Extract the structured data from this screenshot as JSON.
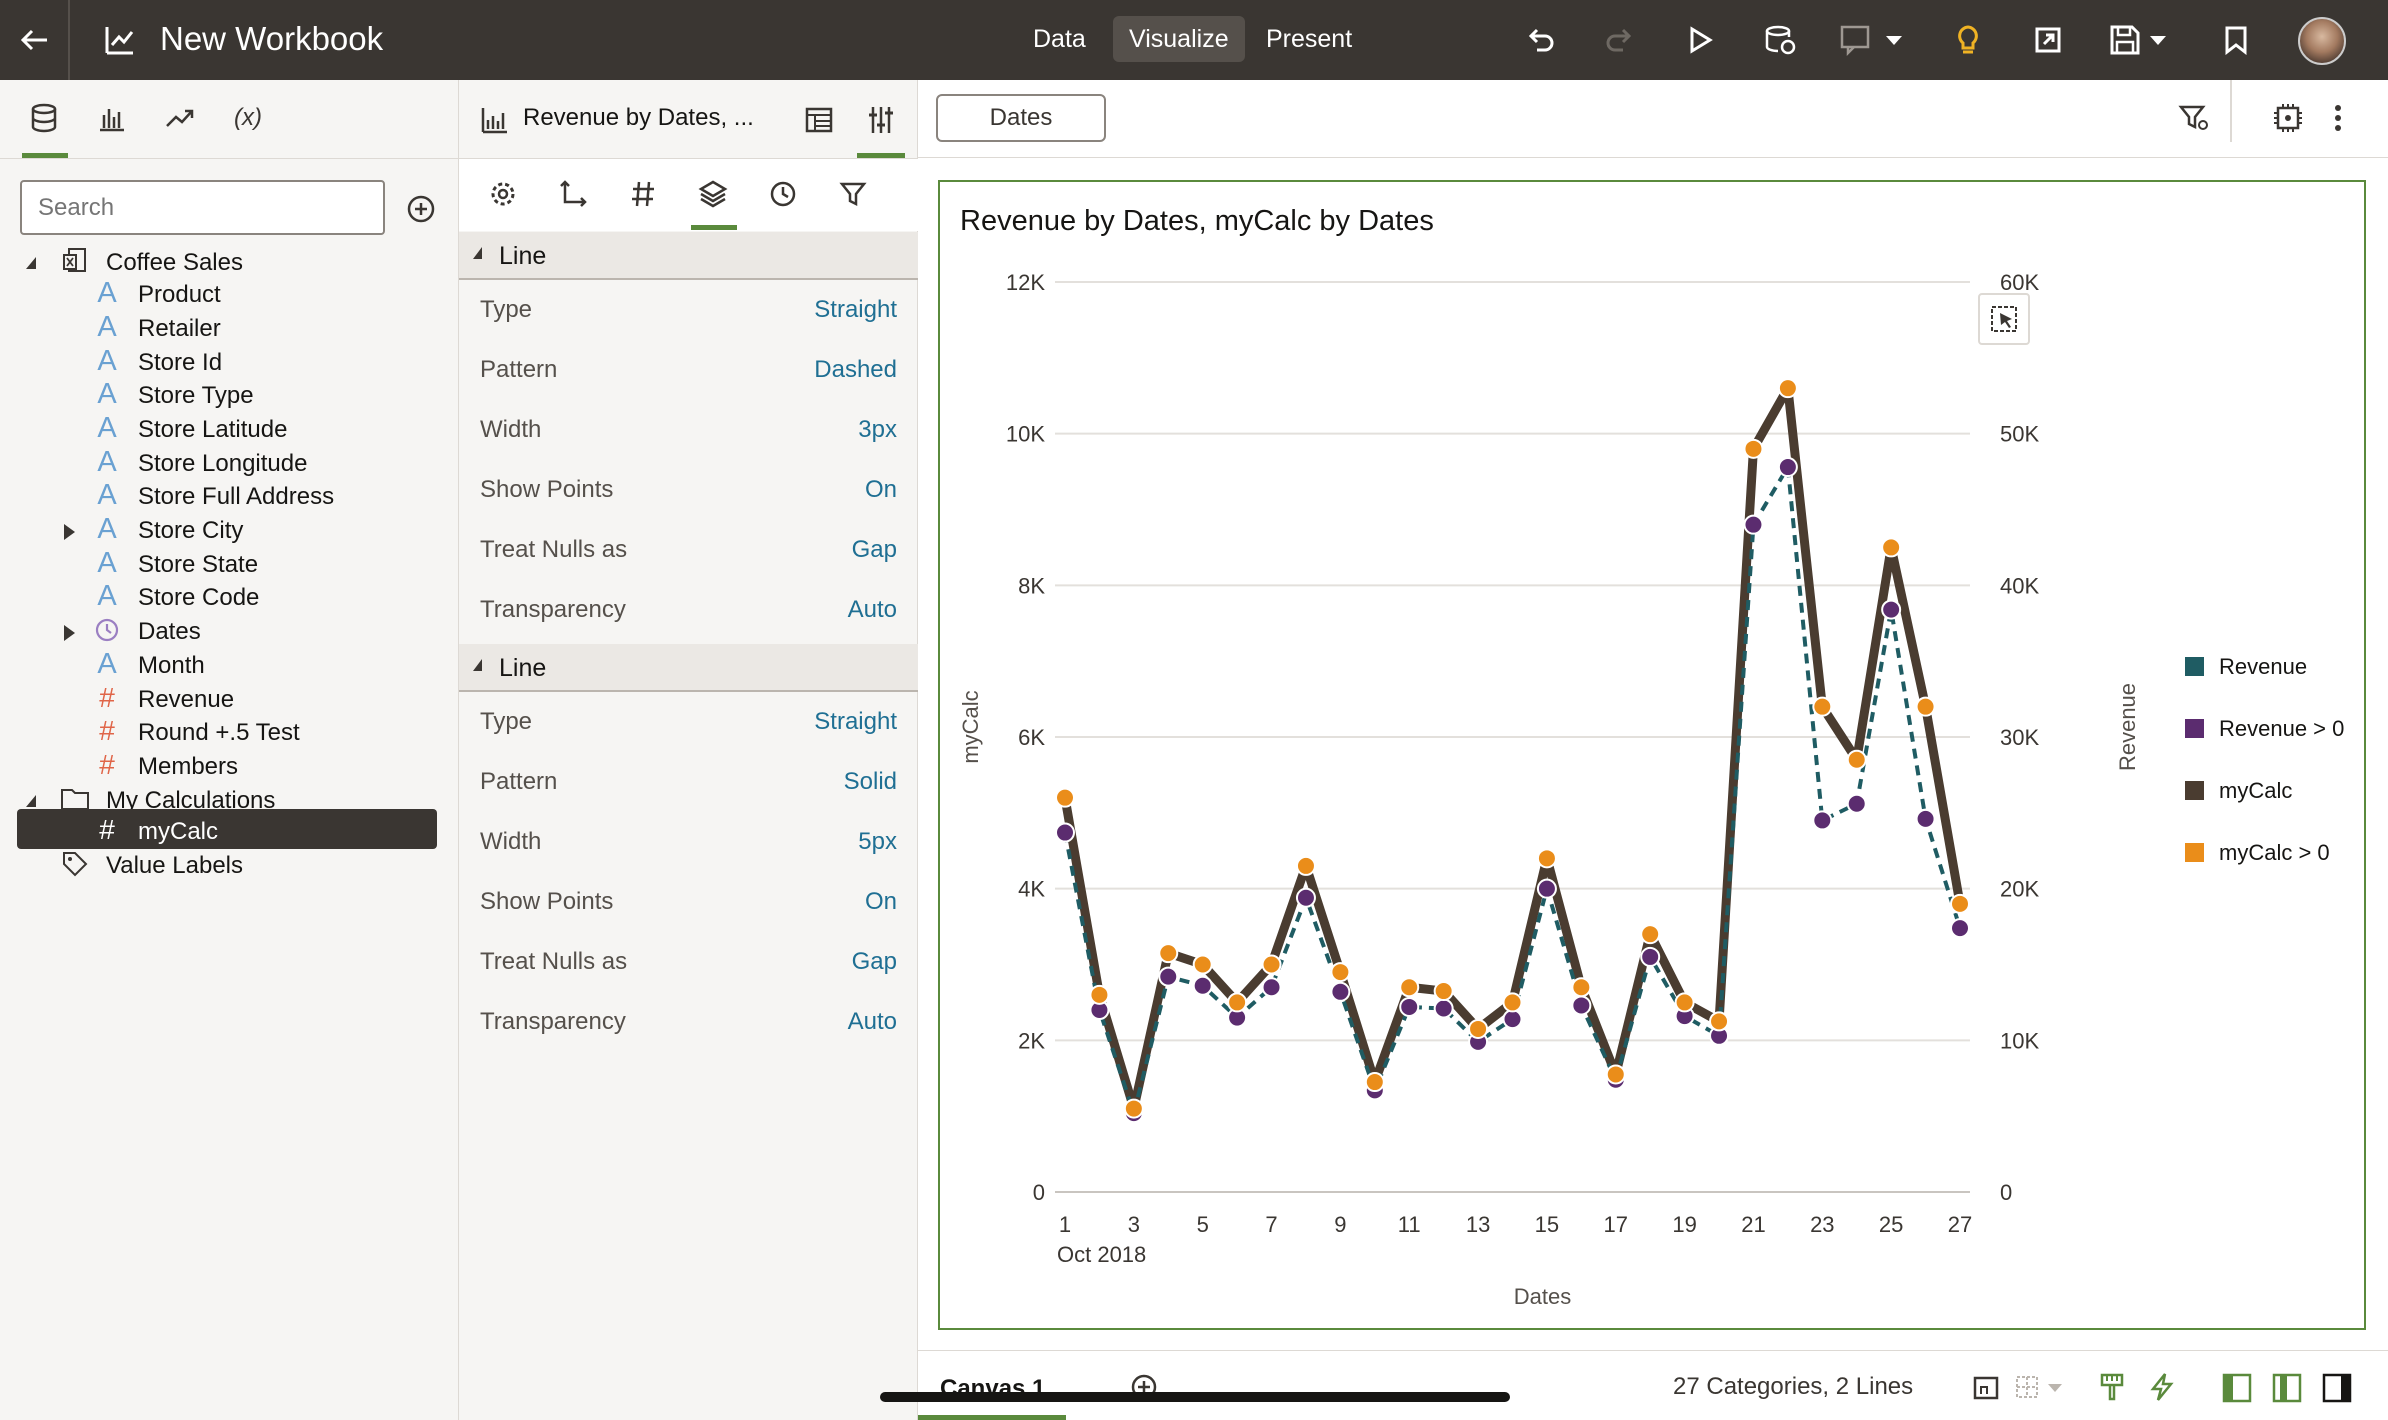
{
  "app": {
    "title": "New Workbook",
    "nav": [
      "Data",
      "Visualize",
      "Present"
    ],
    "active_nav": "Visualize"
  },
  "left": {
    "tabs": [
      "data-icon",
      "bar-chart-icon",
      "trend-icon",
      "(x)"
    ],
    "search_placeholder": "Search",
    "tree": [
      {
        "label": "Coffee Sales",
        "type": "dataset",
        "level": 0,
        "expanded": true
      },
      {
        "label": "Product",
        "type": "attr",
        "level": 1
      },
      {
        "label": "Retailer",
        "type": "attr",
        "level": 1
      },
      {
        "label": "Store Id",
        "type": "attr",
        "level": 1
      },
      {
        "label": "Store Type",
        "type": "attr",
        "level": 1
      },
      {
        "label": "Store Latitude",
        "type": "attr",
        "level": 1
      },
      {
        "label": "Store Longitude",
        "type": "attr",
        "level": 1
      },
      {
        "label": "Store Full Address",
        "type": "attr",
        "level": 1
      },
      {
        "label": "Store City",
        "type": "attr",
        "level": 1,
        "collapsed": true
      },
      {
        "label": "Store State",
        "type": "attr",
        "level": 1
      },
      {
        "label": "Store Code",
        "type": "attr",
        "level": 1
      },
      {
        "label": "Dates",
        "type": "time",
        "level": 1,
        "collapsed": true
      },
      {
        "label": "Month",
        "type": "attr",
        "level": 1
      },
      {
        "label": "Revenue",
        "type": "measure",
        "level": 1
      },
      {
        "label": "Round +.5 Test",
        "type": "measure",
        "level": 1
      },
      {
        "label": "Members",
        "type": "measure",
        "level": 1
      },
      {
        "label": "My Calculations",
        "type": "folder",
        "level": 0,
        "expanded": true
      },
      {
        "label": "myCalc",
        "type": "calc",
        "level": 1,
        "selected": true
      },
      {
        "label": "Value Labels",
        "type": "tag",
        "level": 0
      }
    ]
  },
  "props": {
    "viz_title": "Revenue by Dates, ...",
    "sections": [
      {
        "title": "Line",
        "rows": [
          [
            "Type",
            "Straight"
          ],
          [
            "Pattern",
            "Dashed"
          ],
          [
            "Width",
            "3px"
          ],
          [
            "Show Points",
            "On"
          ],
          [
            "Treat Nulls as",
            "Gap"
          ],
          [
            "Transparency",
            "Auto"
          ]
        ]
      },
      {
        "title": "Line",
        "rows": [
          [
            "Type",
            "Straight"
          ],
          [
            "Pattern",
            "Solid"
          ],
          [
            "Width",
            "5px"
          ],
          [
            "Show Points",
            "On"
          ],
          [
            "Treat Nulls as",
            "Gap"
          ],
          [
            "Transparency",
            "Auto"
          ]
        ]
      }
    ]
  },
  "canvas": {
    "filter_pill": "Dates",
    "tab": "Canvas 1",
    "status": "27 Categories, 2 Lines"
  },
  "chart_data": {
    "type": "line",
    "title": "Revenue by Dates, myCalc by Dates",
    "xlabel": "Dates",
    "ylabel": "myCalc",
    "y2label": "Revenue",
    "x_sublabel": "Oct 2018",
    "categories": [
      1,
      2,
      3,
      4,
      5,
      6,
      7,
      8,
      9,
      10,
      11,
      12,
      13,
      14,
      15,
      16,
      17,
      18,
      19,
      20,
      21,
      22,
      23,
      24,
      25,
      26,
      27
    ],
    "x_tick_labels": [
      "1",
      "3",
      "5",
      "7",
      "9",
      "11",
      "13",
      "15",
      "17",
      "19",
      "21",
      "23",
      "25",
      "27"
    ],
    "ylim": [
      0,
      12000
    ],
    "y_ticks": [
      "0",
      "2K",
      "4K",
      "6K",
      "8K",
      "10K",
      "12K"
    ],
    "y2lim": [
      0,
      60000
    ],
    "y2_ticks": [
      "0",
      "10K",
      "20K",
      "30K",
      "40K",
      "50K",
      "60K"
    ],
    "series": [
      {
        "name": "Revenue",
        "axis": "right",
        "color": "#1f5c63",
        "dashed": true,
        "marker_color": "#5b2c6f",
        "values": [
          23700,
          12000,
          5200,
          14200,
          13600,
          11500,
          13500,
          19400,
          13200,
          6700,
          12200,
          12100,
          9900,
          11400,
          20000,
          12300,
          7400,
          15500,
          11600,
          10300,
          44000,
          47800,
          24500,
          25600,
          38400,
          24600,
          17400
        ]
      },
      {
        "name": "myCalc",
        "axis": "left",
        "color": "#4a3c30",
        "dashed": false,
        "marker_color": "#ea8d1a",
        "values": [
          5200,
          2600,
          1100,
          3150,
          3000,
          2500,
          3000,
          4300,
          2900,
          1450,
          2700,
          2650,
          2150,
          2500,
          4400,
          2700,
          1550,
          3400,
          2500,
          2250,
          9800,
          10600,
          6400,
          5700,
          8500,
          6400,
          3800
        ]
      }
    ],
    "legend": [
      {
        "label": "Revenue",
        "color": "#1f5c63"
      },
      {
        "label": "Revenue > 0",
        "color": "#5b2c6f"
      },
      {
        "label": "myCalc",
        "color": "#4a3c30"
      },
      {
        "label": "myCalc > 0",
        "color": "#ea8d1a"
      }
    ],
    "legend_position": "right"
  }
}
